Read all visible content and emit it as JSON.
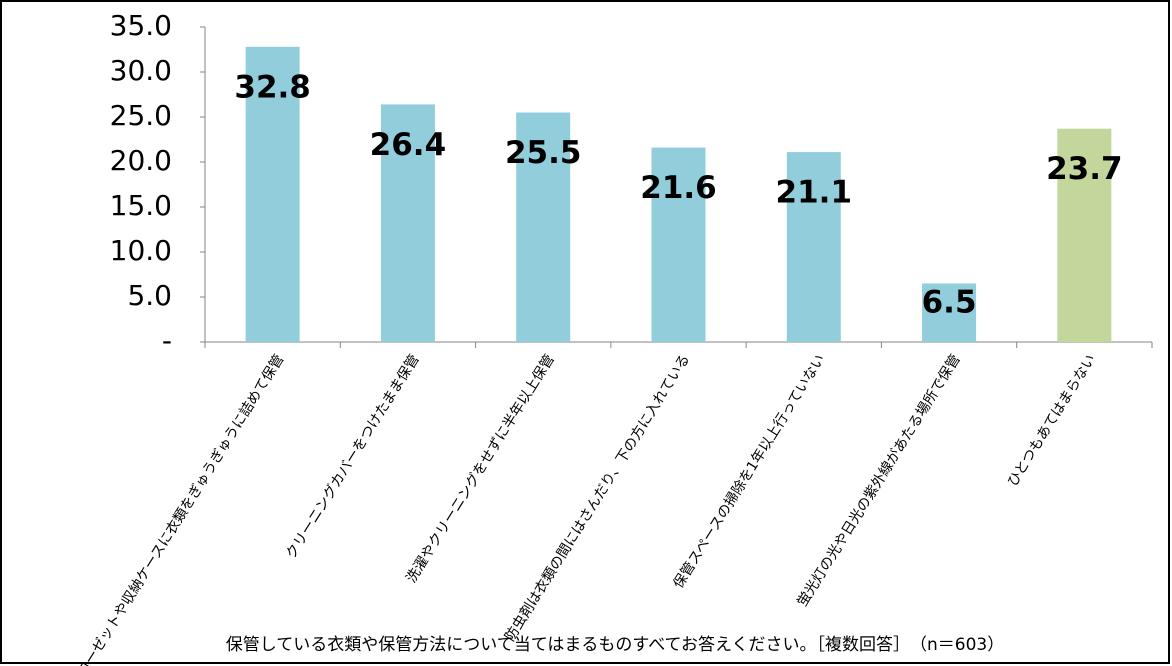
{
  "chart_data": {
    "type": "bar",
    "note": "保管している衣類や保管方法について当てはまるものすべてお答えください。［複数回答］　（n＝603）",
    "categories": [
      "クローゼットや収納ケースに衣類をぎゅうぎゅうに詰めて保管",
      "クリーニングカバーをつけたまま保管",
      "洗濯やクリーニングをせずに半年以上保管",
      "防虫剤は衣類の間にはさんだり、下の方に入れている",
      "保管スペースの掃除を1年以上行っていない",
      "蛍光灯の光や日光の紫外線があたる場所で保管",
      "ひとつもあてはまらない"
    ],
    "values": [
      32.8,
      26.4,
      25.5,
      21.6,
      21.1,
      6.5,
      23.7
    ],
    "colors": [
      "#92cddc",
      "#92cddc",
      "#92cddc",
      "#92cddc",
      "#92cddc",
      "#92cddc",
      "#c3d69b"
    ],
    "ylim": [
      0,
      35
    ],
    "yticks": [
      {
        "value": 0,
        "label": "-"
      },
      {
        "value": 5,
        "label": "5.0"
      },
      {
        "value": 10,
        "label": "10.0"
      },
      {
        "value": 15,
        "label": "15.0"
      },
      {
        "value": 20,
        "label": "20.0"
      },
      {
        "value": 25,
        "label": "25.0"
      },
      {
        "value": 30,
        "label": "30.0"
      },
      {
        "value": 35,
        "label": "35.0"
      }
    ],
    "grid": false
  }
}
